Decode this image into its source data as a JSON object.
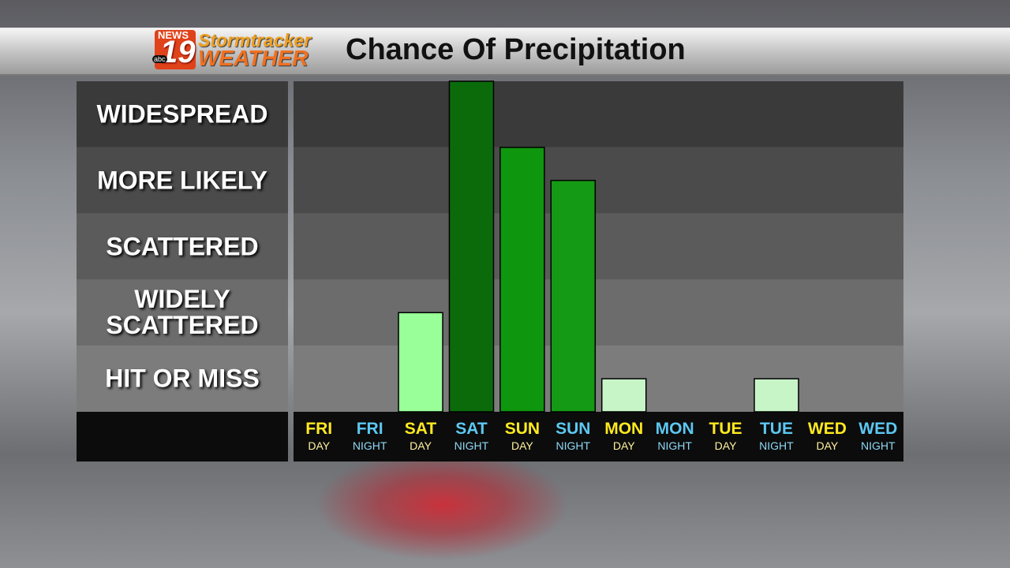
{
  "logo": {
    "news": "NEWS",
    "number": "19",
    "network": "abc",
    "brand": "Stormtracker",
    "weather": "WEATHER"
  },
  "chart_data": {
    "type": "bar",
    "title": "Chance Of Precipitation",
    "categories": [
      "FRI",
      "FRI",
      "SAT",
      "SAT",
      "SUN",
      "SUN",
      "MON",
      "MON",
      "TUE",
      "TUE",
      "WED",
      "WED"
    ],
    "periods": [
      "DAY",
      "NIGHT",
      "DAY",
      "NIGHT",
      "DAY",
      "NIGHT",
      "DAY",
      "NIGHT",
      "DAY",
      "NIGHT",
      "DAY",
      "NIGHT"
    ],
    "values": [
      0,
      0,
      1.5,
      5,
      4,
      3.5,
      0.5,
      0,
      0,
      0.5,
      0,
      0
    ],
    "colors": [
      null,
      null,
      "#99ff99",
      "#0b6b0b",
      "#0f960f",
      "#149a14",
      "#c8f5c8",
      null,
      null,
      "#c8f5c8",
      null,
      null
    ],
    "category_colors": [
      "#ffea1f",
      "#5cc8f2"
    ],
    "ylim": [
      0,
      5
    ],
    "yticks": [
      {
        "value": 0.5,
        "label": "HIT OR MISS"
      },
      {
        "value": 1.5,
        "label": "WIDELY SCATTERED"
      },
      {
        "value": 2.5,
        "label": "SCATTERED"
      },
      {
        "value": 3.5,
        "label": "MORE LIKELY"
      },
      {
        "value": 4.5,
        "label": "WIDESPREAD"
      }
    ],
    "grid": true
  }
}
